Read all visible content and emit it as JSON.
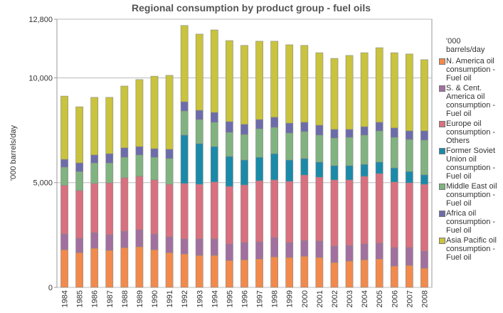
{
  "chart_data": {
    "type": "stacked_bar",
    "title": "Regional consumption by product group - fuel oils",
    "y_label": "'000 barrels/day",
    "legend_title": "'000 barrels/day",
    "legend_position": "right",
    "grid": true,
    "ylim": [
      0,
      12800
    ],
    "yticks": [
      0,
      {
        "value": 5000,
        "label": "5,000"
      },
      {
        "value": 10000,
        "label": "10,000"
      },
      {
        "value": 12800,
        "label": "12,800"
      }
    ],
    "categories": [
      "1984",
      "1985",
      "1986",
      "1987",
      "1988",
      "1989",
      "1990",
      "1991",
      "1992",
      "1993",
      "1994",
      "1995",
      "1996",
      "1997",
      "1998",
      "1999",
      "2000",
      "2001",
      "2002",
      "2003",
      "2004",
      "2005",
      "2006",
      "2007",
      "2008"
    ],
    "series": [
      {
        "name": "N. America oil consumption - Fuel oil",
        "color": "#f28a4c",
        "values": [
          1800,
          1660,
          1870,
          1770,
          1900,
          1940,
          1800,
          1660,
          1600,
          1530,
          1530,
          1290,
          1320,
          1360,
          1460,
          1430,
          1490,
          1430,
          1190,
          1260,
          1320,
          1360,
          1020,
          1050,
          920
        ]
      },
      {
        "name": "S. & Cent. America oil consumption - Fuel oil",
        "color": "#a2709f",
        "values": [
          750,
          680,
          740,
          740,
          780,
          810,
          750,
          750,
          710,
          780,
          780,
          780,
          820,
          810,
          920,
          710,
          750,
          780,
          780,
          740,
          750,
          750,
          880,
          850,
          810
        ]
      },
      {
        "name": "Europe oil consumption - Others",
        "color": "#d9707f",
        "values": [
          2320,
          2280,
          2350,
          2480,
          2550,
          2550,
          2580,
          2510,
          2650,
          2610,
          2720,
          2750,
          2750,
          2920,
          2750,
          2920,
          3120,
          3050,
          3160,
          3130,
          3230,
          3320,
          3130,
          3090,
          3190
        ]
      },
      {
        "name": "Former Soviet Union oil consumption - Fuel oil",
        "color": "#1b8aa8",
        "values": [
          0,
          0,
          0,
          0,
          0,
          0,
          0,
          0,
          2310,
          1940,
          1690,
          1430,
          1190,
          1120,
          1250,
          1020,
          790,
          720,
          680,
          680,
          570,
          550,
          670,
          540,
          450
        ]
      },
      {
        "name": "Middle East oil consumption - Fuel oil",
        "color": "#80b380",
        "values": [
          870,
          910,
          980,
          950,
          980,
          1020,
          1080,
          1230,
          1150,
          1150,
          1160,
          1150,
          1220,
          1360,
          1260,
          1290,
          1290,
          1290,
          1320,
          1350,
          1400,
          1490,
          1460,
          1530,
          1660
        ]
      },
      {
        "name": "Africa oil consumption - Fuel oil",
        "color": "#6d6caa",
        "values": [
          370,
          410,
          380,
          440,
          450,
          400,
          410,
          440,
          440,
          440,
          470,
          510,
          480,
          440,
          480,
          470,
          440,
          470,
          410,
          380,
          400,
          410,
          450,
          410,
          440
        ]
      },
      {
        "name": "Asia Pacific oil consumption - Fuel oil",
        "color": "#c9c33e",
        "values": [
          3020,
          2680,
          2750,
          2690,
          2950,
          3200,
          3460,
          3530,
          3640,
          3640,
          3940,
          3870,
          3770,
          3740,
          3630,
          3740,
          3670,
          3460,
          3390,
          3530,
          3530,
          3560,
          3590,
          3670,
          3400
        ]
      }
    ]
  }
}
